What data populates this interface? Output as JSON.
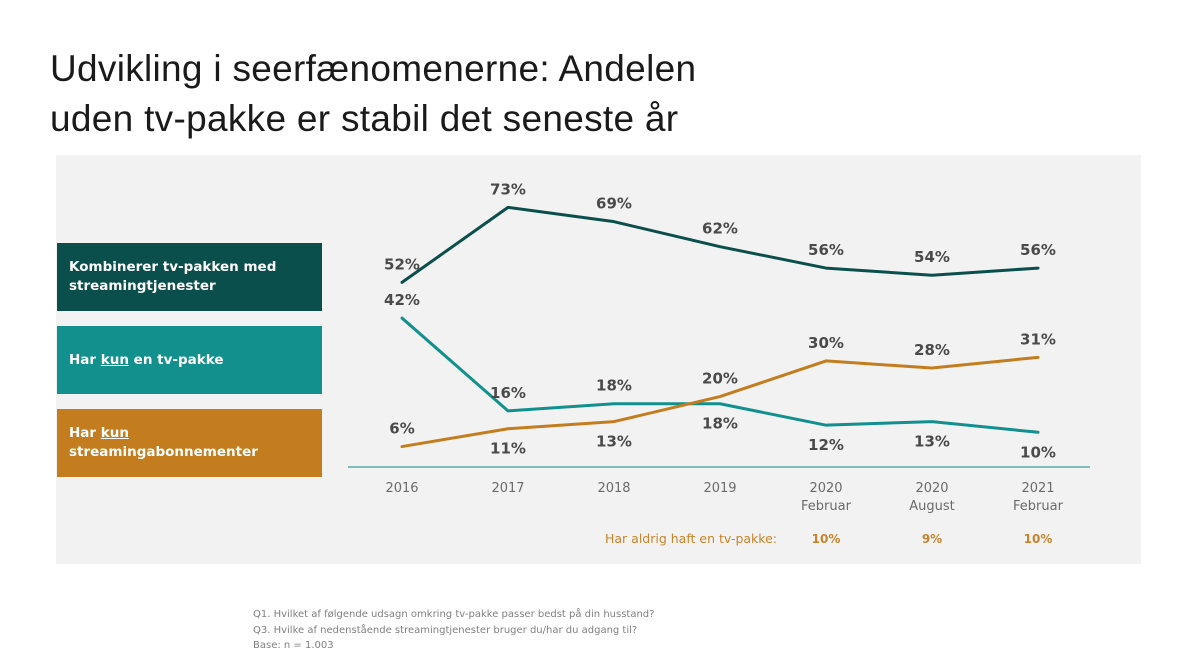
{
  "title_line1": "Udvikling i seerfænomenerne: Andelen",
  "title_line2": "uden tv-pakke er stabil det seneste år",
  "legend": [
    {
      "line1": "Kombinerer tv-pakken med",
      "line2": "streamingtjenester",
      "color": "#0b4f4c"
    },
    {
      "pre": "Har ",
      "under": "kun",
      "post": " en tv-pakke",
      "color": "#12908e"
    },
    {
      "pre": "Har ",
      "under": "kun",
      "post": " streamingabonnementer",
      "color": "#c47d1e"
    }
  ],
  "chart_data": {
    "type": "line",
    "title": "Udvikling i seerfænomenerne: Andelen uden tv-pakke er stabil det seneste år",
    "xlabel": "",
    "ylabel": "",
    "ylim": [
      0,
      100
    ],
    "grid": false,
    "legend_position": "left",
    "categories": [
      [
        "2016"
      ],
      [
        "2017"
      ],
      [
        "2018"
      ],
      [
        "2019"
      ],
      [
        "2020",
        "Februar"
      ],
      [
        "2020",
        "August"
      ],
      [
        "2021",
        "Februar"
      ]
    ],
    "series": [
      {
        "name": "Kombinerer tv-pakken med streamingtjenester",
        "color": "#0b4f4c",
        "values": [
          52,
          73,
          69,
          62,
          56,
          54,
          56
        ],
        "labels": [
          "52%",
          "73%",
          "69%",
          "62%",
          "56%",
          "54%",
          "56%"
        ],
        "label_pos": [
          "above",
          "above",
          "above",
          "above",
          "above",
          "above",
          "above"
        ]
      },
      {
        "name": "Har kun en tv-pakke",
        "color": "#12908e",
        "values": [
          42,
          16,
          18,
          18,
          12,
          13,
          10
        ],
        "labels": [
          "42%",
          "16%",
          "18%",
          "18%",
          "12%",
          "13%",
          "10%"
        ],
        "label_pos": [
          "above",
          "above",
          "above",
          "below",
          "below",
          "below",
          "below"
        ]
      },
      {
        "name": "Har kun streamingabonnementer",
        "color": "#c47d1e",
        "values": [
          6,
          11,
          13,
          20,
          30,
          28,
          31
        ],
        "labels": [
          "6%",
          "11%",
          "13%",
          "20%",
          "30%",
          "28%",
          "31%"
        ],
        "label_pos": [
          "above",
          "below",
          "below",
          "above",
          "above",
          "above",
          "above"
        ]
      }
    ],
    "annotation": {
      "label": "Har aldrig haft en tv-pakke:",
      "color": "#c8842a",
      "values": [
        {
          "category_index": 4,
          "value": "10%"
        },
        {
          "category_index": 5,
          "value": "9%"
        },
        {
          "category_index": 6,
          "value": "10%"
        }
      ]
    },
    "axis_color": "#5aa9a6"
  },
  "footnotes": [
    "Q1. Hvilket af følgende udsagn omkring tv-pakke passer bedst på din husstand?",
    "Q3. Hvilke af nedenstående streamingtjenester bruger du/har du adgang til?",
    "Base: n = 1.003"
  ]
}
